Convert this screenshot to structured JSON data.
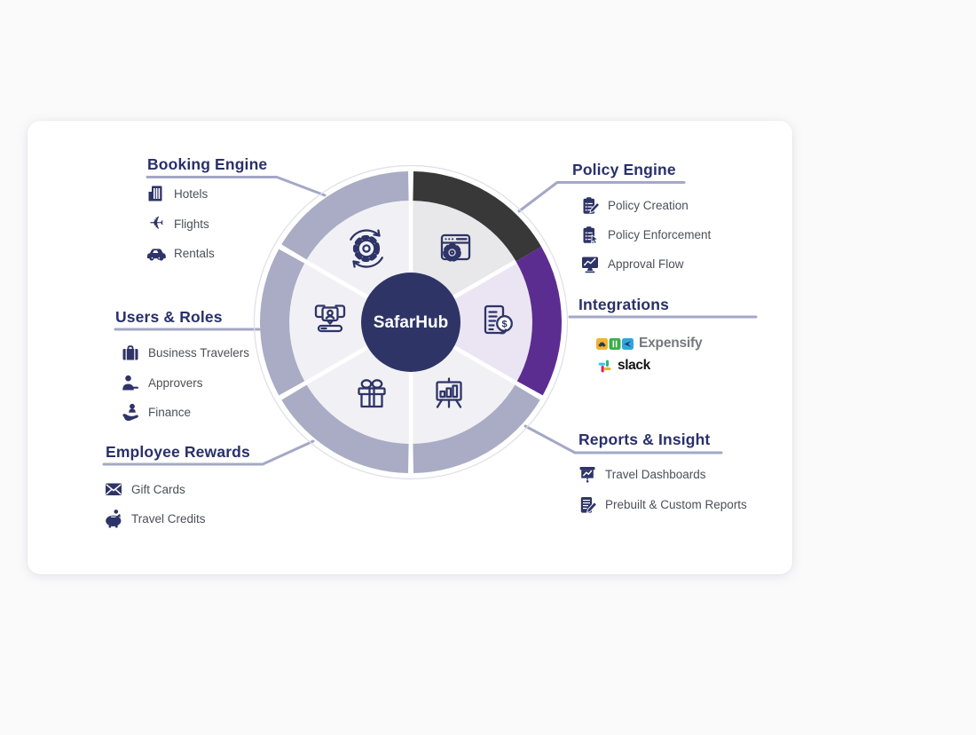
{
  "wheel": {
    "center_label": "SafarHub",
    "center_color": "#2E3566",
    "outline_color": "#DEDFE8",
    "dollar_glyph": "$",
    "segments": [
      {
        "name": "policy-engine",
        "ring_color": "#383838",
        "inner_color": "#E8E7EA"
      },
      {
        "name": "integrations",
        "ring_color": "#5C2D91",
        "inner_color": "#EBE5F3"
      },
      {
        "name": "reports-insight",
        "ring_color": "#A9ACC4",
        "inner_color": "#F1F1F5"
      },
      {
        "name": "employee-rewards",
        "ring_color": "#A9ACC4",
        "inner_color": "#F1F1F5"
      },
      {
        "name": "users-roles",
        "ring_color": "#A9ACC4",
        "inner_color": "#F1F1F5"
      },
      {
        "name": "booking-engine",
        "ring_color": "#A9ACC4",
        "inner_color": "#F1F1F5"
      }
    ]
  },
  "sections": {
    "booking": {
      "title": "Booking Engine",
      "items": [
        {
          "icon": "hotel-icon",
          "label": "Hotels"
        },
        {
          "icon": "plane-icon",
          "label": "Flights"
        },
        {
          "icon": "car-icon",
          "label": "Rentals"
        }
      ]
    },
    "policy": {
      "title": "Policy Engine",
      "items": [
        {
          "icon": "clipboard-pencil-icon",
          "label": "Policy Creation"
        },
        {
          "icon": "clipboard-cursor-icon",
          "label": "Policy Enforcement"
        },
        {
          "icon": "monitor-chart-icon",
          "label": "Approval Flow"
        }
      ]
    },
    "users": {
      "title": "Users & Roles",
      "items": [
        {
          "icon": "briefcase-icon",
          "label": "Business Travelers"
        },
        {
          "icon": "person-icon",
          "label": "Approvers"
        },
        {
          "icon": "hand-person-icon",
          "label": "Finance"
        }
      ]
    },
    "integrations": {
      "title": "Integrations",
      "logos": [
        {
          "name": "expensify-logo",
          "text": "Expensify"
        },
        {
          "name": "slack-logo",
          "text": "slack"
        }
      ]
    },
    "rewards": {
      "title": "Employee Rewards",
      "items": [
        {
          "icon": "envelope-icon",
          "label": "Gift Cards"
        },
        {
          "icon": "piggy-bank-icon",
          "label": "Travel Credits"
        }
      ]
    },
    "reports": {
      "title": "Reports & Insight",
      "items": [
        {
          "icon": "presentation-chart-icon",
          "label": "Travel Dashboards"
        },
        {
          "icon": "notepad-pencil-icon",
          "label": "Prebuilt & Custom Reports"
        }
      ]
    }
  },
  "glyphs": {
    "plane": "✈"
  },
  "colors": {
    "page_background": "#FAFAFA",
    "card_background": "#FFFFFF",
    "title_color": "#29306A",
    "label_color": "#4D4F58",
    "line_color": "#A4A8C6",
    "icon_navy": "#2E3467",
    "expensify_yellow": "#F0B42E",
    "expensify_green": "#3AAF4C",
    "expensify_blue": "#2EA7DF",
    "slack_blue": "#36C5F0",
    "slack_green": "#2EB67D",
    "slack_yellow": "#ECB22E",
    "slack_red": "#E01E5A"
  }
}
